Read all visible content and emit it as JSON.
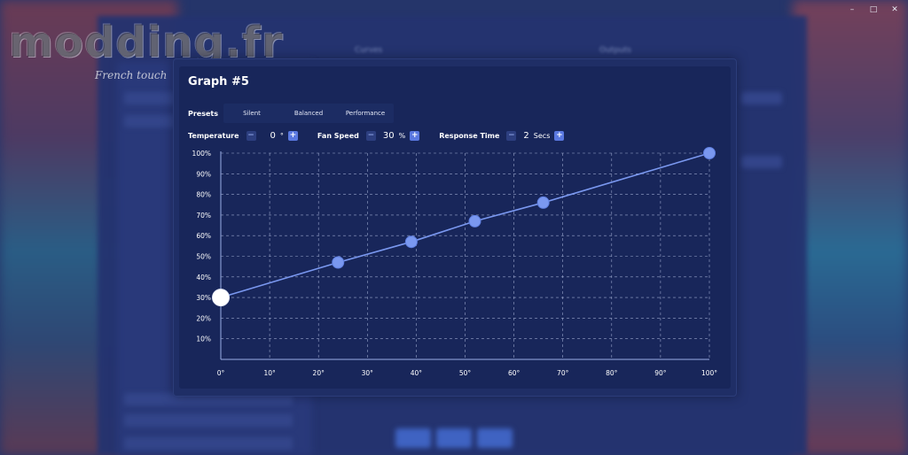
{
  "watermark": {
    "logo": "modding.fr",
    "tagline": "French touch"
  },
  "window": {
    "minimize": "–",
    "maximize": "□",
    "close": "✕"
  },
  "background": {
    "heading_left": "Curves",
    "heading_right": "Outputs"
  },
  "dialog": {
    "title": "Graph #5",
    "presets_label": "Presets",
    "presets": [
      "Silent",
      "Balanced",
      "Performance"
    ],
    "controls": {
      "temperature": {
        "label": "Temperature",
        "value": "0",
        "unit": "°"
      },
      "fan_speed": {
        "label": "Fan Speed",
        "value": "30",
        "unit": "%"
      },
      "response_time": {
        "label": "Response Time",
        "value": "2",
        "unit": "Secs"
      },
      "minus": "−",
      "plus": "+"
    }
  },
  "colors": {
    "line": "#7a98f0",
    "point": "#7a98f0",
    "selected_point": "#ffffff",
    "grid": "#b9c4e6",
    "axis": "#9aaee6"
  },
  "chart_data": {
    "type": "line",
    "x": [
      0,
      24,
      39,
      52,
      66,
      100
    ],
    "y": [
      30,
      47,
      57,
      67,
      76,
      100
    ],
    "selected_index": 0,
    "xlim": [
      0,
      100
    ],
    "ylim": [
      0,
      100
    ],
    "x_ticks": [
      "0°",
      "10°",
      "20°",
      "30°",
      "40°",
      "50°",
      "60°",
      "70°",
      "80°",
      "90°",
      "100°"
    ],
    "y_ticks": [
      "10%",
      "20%",
      "30%",
      "40%",
      "50%",
      "60%",
      "70%",
      "80%",
      "90%",
      "100%"
    ],
    "grid": true
  }
}
